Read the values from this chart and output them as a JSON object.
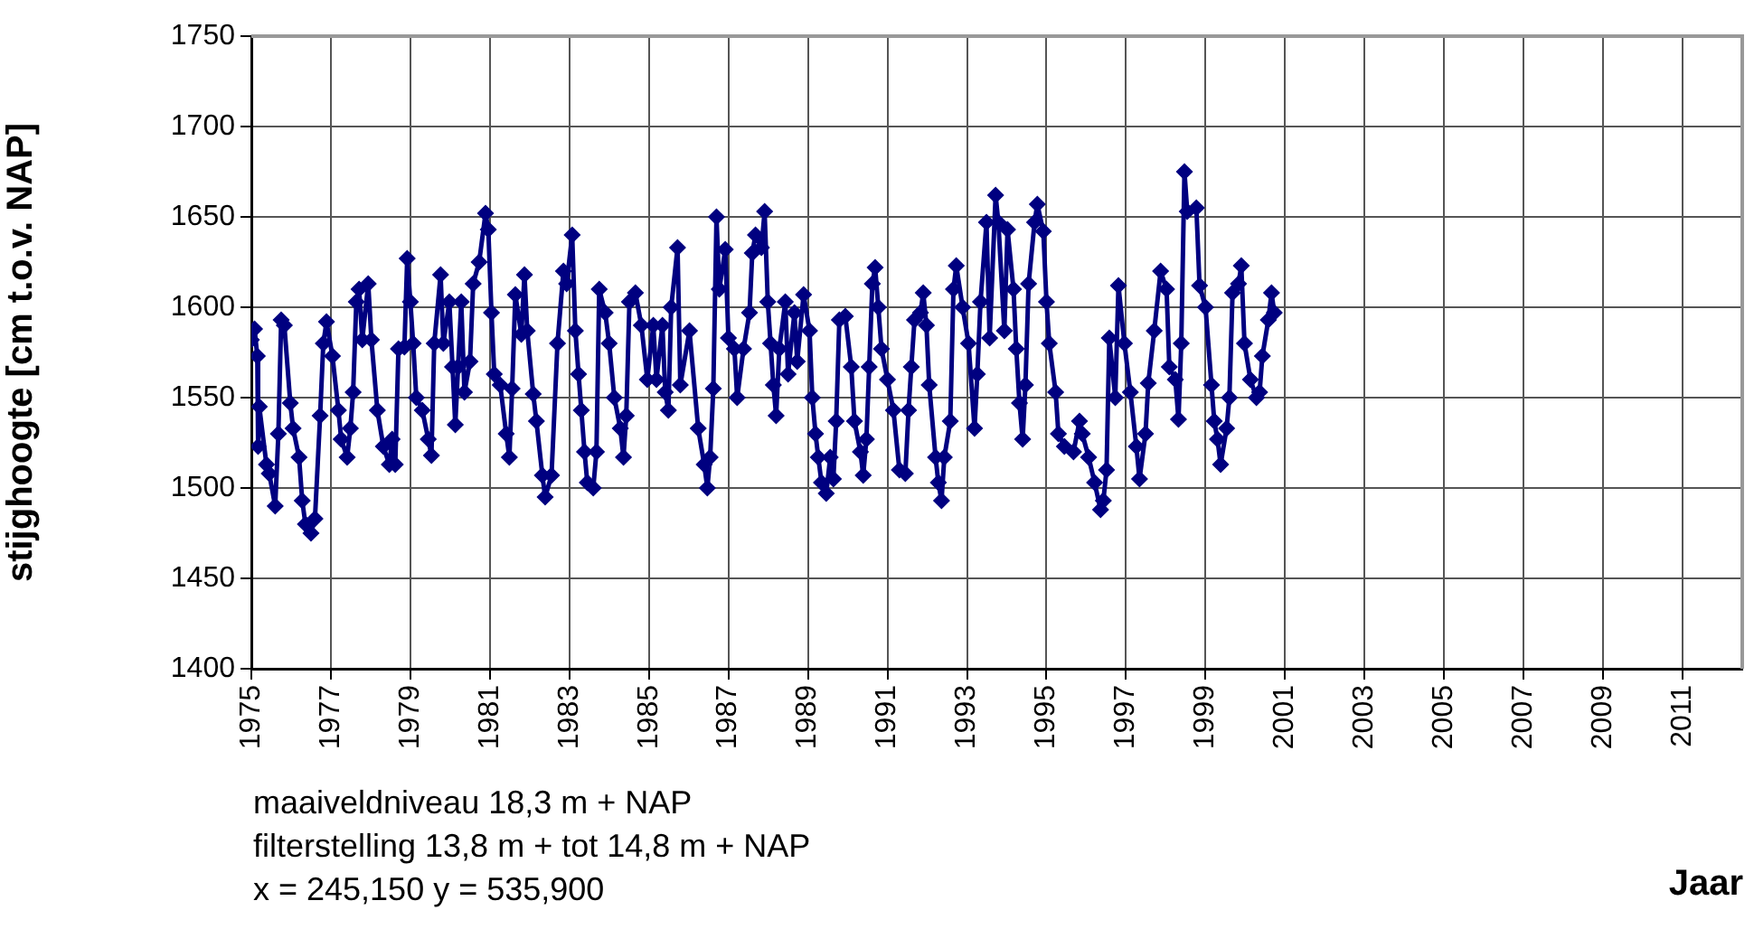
{
  "chart_data": {
    "type": "line",
    "ylabel": "stijghoogte [cm t.o.v. NAP]",
    "xlabel": "Jaar",
    "annotations": [
      "maaiveldniveau  18,3 m + NAP",
      "filterstelling  13,8 m + tot 14,8 m + NAP",
      "x = 245,150  y = 535,900"
    ],
    "xlim": [
      1975,
      2012.5
    ],
    "xticks": [
      1975,
      1977,
      1979,
      1981,
      1983,
      1985,
      1987,
      1989,
      1991,
      1993,
      1995,
      1997,
      1999,
      2001,
      2003,
      2005,
      2007,
      2009,
      2011
    ],
    "ylim": [
      1400,
      1750
    ],
    "yticks": [
      1400,
      1450,
      1500,
      1550,
      1600,
      1650,
      1700,
      1750
    ],
    "grid": true,
    "legend": false,
    "marker": "diamond",
    "line_style": "solid",
    "series": [
      {
        "color": "#000080",
        "x": [
          1975.0,
          1975.08,
          1975.15,
          1975.17,
          1975.2,
          1975.38,
          1975.45,
          1975.6,
          1975.68,
          1975.75,
          1975.83,
          1975.98,
          1976.05,
          1976.2,
          1976.28,
          1976.36,
          1976.5,
          1976.6,
          1976.73,
          1976.81,
          1976.89,
          1977.04,
          1977.19,
          1977.26,
          1977.41,
          1977.49,
          1977.56,
          1977.64,
          1977.71,
          1977.79,
          1977.94,
          1978.02,
          1978.17,
          1978.32,
          1978.47,
          1978.54,
          1978.62,
          1978.7,
          1978.85,
          1978.92,
          1979.0,
          1979.07,
          1979.15,
          1979.3,
          1979.45,
          1979.53,
          1979.6,
          1979.76,
          1979.83,
          1979.98,
          1980.06,
          1980.13,
          1980.2,
          1980.28,
          1980.36,
          1980.5,
          1980.58,
          1980.73,
          1980.89,
          1980.96,
          1981.04,
          1981.11,
          1981.26,
          1981.41,
          1981.49,
          1981.56,
          1981.64,
          1981.79,
          1981.87,
          1981.94,
          1982.09,
          1982.17,
          1982.32,
          1982.39,
          1982.55,
          1982.7,
          1982.85,
          1982.93,
          1983.07,
          1983.15,
          1983.23,
          1983.3,
          1983.38,
          1983.45,
          1983.6,
          1983.68,
          1983.75,
          1983.9,
          1984.0,
          1984.13,
          1984.28,
          1984.36,
          1984.43,
          1984.51,
          1984.66,
          1984.81,
          1984.96,
          1985.11,
          1985.19,
          1985.34,
          1985.41,
          1985.49,
          1985.56,
          1985.72,
          1985.79,
          1986.02,
          1986.24,
          1986.39,
          1986.47,
          1986.54,
          1986.62,
          1986.7,
          1986.77,
          1986.92,
          1987.0,
          1987.15,
          1987.22,
          1987.38,
          1987.53,
          1987.6,
          1987.68,
          1987.83,
          1987.91,
          1987.99,
          1988.06,
          1988.13,
          1988.2,
          1988.28,
          1988.43,
          1988.5,
          1988.66,
          1988.73,
          1988.89,
          1989.04,
          1989.11,
          1989.19,
          1989.26,
          1989.34,
          1989.46,
          1989.56,
          1989.64,
          1989.71,
          1989.79,
          1989.94,
          1990.09,
          1990.17,
          1990.32,
          1990.39,
          1990.47,
          1990.54,
          1990.62,
          1990.69,
          1990.77,
          1990.85,
          1991.0,
          1991.15,
          1991.3,
          1991.45,
          1991.53,
          1991.6,
          1991.68,
          1991.83,
          1991.9,
          1991.98,
          1992.05,
          1992.21,
          1992.28,
          1992.36,
          1992.43,
          1992.58,
          1992.66,
          1992.73,
          1992.89,
          1993.04,
          1993.19,
          1993.26,
          1993.34,
          1993.49,
          1993.57,
          1993.72,
          1993.79,
          1993.94,
          1994.02,
          1994.17,
          1994.24,
          1994.32,
          1994.4,
          1994.47,
          1994.55,
          1994.7,
          1994.77,
          1994.92,
          1995.0,
          1995.07,
          1995.23,
          1995.3,
          1995.45,
          1995.68,
          1995.83,
          1995.9,
          1996.06,
          1996.21,
          1996.36,
          1996.43,
          1996.51,
          1996.58,
          1996.73,
          1996.81,
          1996.96,
          1997.11,
          1997.26,
          1997.34,
          1997.49,
          1997.56,
          1997.71,
          1997.87,
          1998.02,
          1998.09,
          1998.24,
          1998.32,
          1998.39,
          1998.47,
          1998.54,
          1998.77,
          1998.85,
          1999.0,
          1999.15,
          1999.22,
          1999.3,
          1999.38,
          1999.53,
          1999.6,
          1999.68,
          1999.83,
          1999.9,
          1999.98,
          2000.13,
          2000.28,
          2000.36,
          2000.43,
          2000.58,
          2000.66,
          2000.73
        ],
        "values": [
          1582,
          1588,
          1573,
          1523,
          1545,
          1513,
          1508,
          1490,
          1530,
          1593,
          1590,
          1547,
          1533,
          1517,
          1493,
          1480,
          1475,
          1483,
          1540,
          1580,
          1592,
          1573,
          1543,
          1527,
          1517,
          1533,
          1553,
          1603,
          1610,
          1582,
          1613,
          1582,
          1543,
          1523,
          1513,
          1527,
          1513,
          1577,
          1578,
          1627,
          1603,
          1580,
          1550,
          1543,
          1527,
          1518,
          1580,
          1618,
          1580,
          1603,
          1567,
          1535,
          1567,
          1603,
          1553,
          1570,
          1613,
          1625,
          1652,
          1643,
          1597,
          1563,
          1557,
          1530,
          1517,
          1555,
          1607,
          1585,
          1618,
          1587,
          1552,
          1537,
          1507,
          1495,
          1507,
          1580,
          1620,
          1613,
          1640,
          1587,
          1563,
          1543,
          1520,
          1503,
          1500,
          1520,
          1610,
          1597,
          1580,
          1550,
          1533,
          1517,
          1540,
          1603,
          1608,
          1590,
          1560,
          1590,
          1560,
          1590,
          1553,
          1543,
          1600,
          1633,
          1557,
          1587,
          1533,
          1513,
          1500,
          1517,
          1555,
          1650,
          1610,
          1632,
          1583,
          1577,
          1550,
          1577,
          1597,
          1630,
          1640,
          1633,
          1653,
          1603,
          1580,
          1557,
          1540,
          1577,
          1603,
          1563,
          1597,
          1570,
          1607,
          1587,
          1550,
          1530,
          1517,
          1503,
          1497,
          1517,
          1505,
          1537,
          1593,
          1595,
          1567,
          1537,
          1520,
          1507,
          1527,
          1567,
          1613,
          1622,
          1600,
          1577,
          1560,
          1543,
          1510,
          1508,
          1543,
          1567,
          1593,
          1597,
          1608,
          1590,
          1557,
          1517,
          1503,
          1493,
          1517,
          1537,
          1610,
          1623,
          1600,
          1580,
          1533,
          1563,
          1603,
          1647,
          1583,
          1662,
          1647,
          1587,
          1643,
          1610,
          1577,
          1547,
          1527,
          1557,
          1613,
          1647,
          1657,
          1642,
          1603,
          1580,
          1553,
          1530,
          1523,
          1520,
          1537,
          1530,
          1517,
          1503,
          1488,
          1493,
          1510,
          1583,
          1550,
          1612,
          1580,
          1553,
          1523,
          1505,
          1530,
          1558,
          1587,
          1620,
          1610,
          1567,
          1560,
          1538,
          1580,
          1675,
          1653,
          1655,
          1612,
          1600,
          1557,
          1537,
          1527,
          1513,
          1533,
          1550,
          1608,
          1613,
          1623,
          1580,
          1560,
          1550,
          1553,
          1573,
          1593,
          1608,
          1597
        ]
      }
    ]
  }
}
